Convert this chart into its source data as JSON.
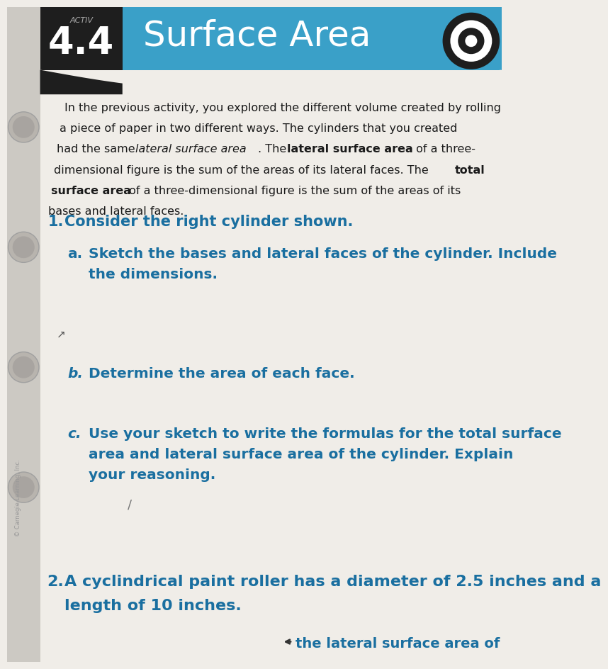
{
  "page_bg": "#f0ede8",
  "spine_bg": "#d8d4ce",
  "header_blue": "#3aa0c8",
  "header_dark": "#1e1e1e",
  "text_dark": "#1a1a1a",
  "blue_text": "#1a6fa0",
  "activity_label": "ACTIV",
  "activity_number": "4.4",
  "title": "Surface Area",
  "intro_lines": [
    {
      "text": "In the previous activity, you explored the different volume created by rolling",
      "bold_ranges": []
    },
    {
      "text": "a piece of paper in two different ways. The cylinders that you created",
      "bold_ranges": []
    },
    {
      "text": "had the same lateral surface area. The lateral surface area of a three-",
      "italic_part": "lateral surface area",
      "bold_part": "lateral surface area"
    },
    {
      "text": "dimensional figure is the sum of the areas of its lateral faces. The total",
      "bold_part": "total"
    },
    {
      "text": "surface area of a three-dimensional figure is the sum of the areas of its",
      "bold_part": "surface area"
    },
    {
      "text": "bases and lateral faces.",
      "bold_ranges": []
    }
  ],
  "q1": "Consider the right cylinder shown.",
  "qa1": "Sketch the bases and lateral faces of the cylinder. Include",
  "qa2": "the dimensions.",
  "qb": "Determine the area of each face.",
  "qc1": "Use your sketch to write the formulas for the total surface",
  "qc2": "area and lateral surface area of the cylinder. Explain",
  "qc3": "your reasoning.",
  "q2a": "2. A cyclindrical paint roller has a diameter of 2.5 inches and a",
  "q2b": "length of 10 inches.",
  "bottom": "the lateral surface area of"
}
